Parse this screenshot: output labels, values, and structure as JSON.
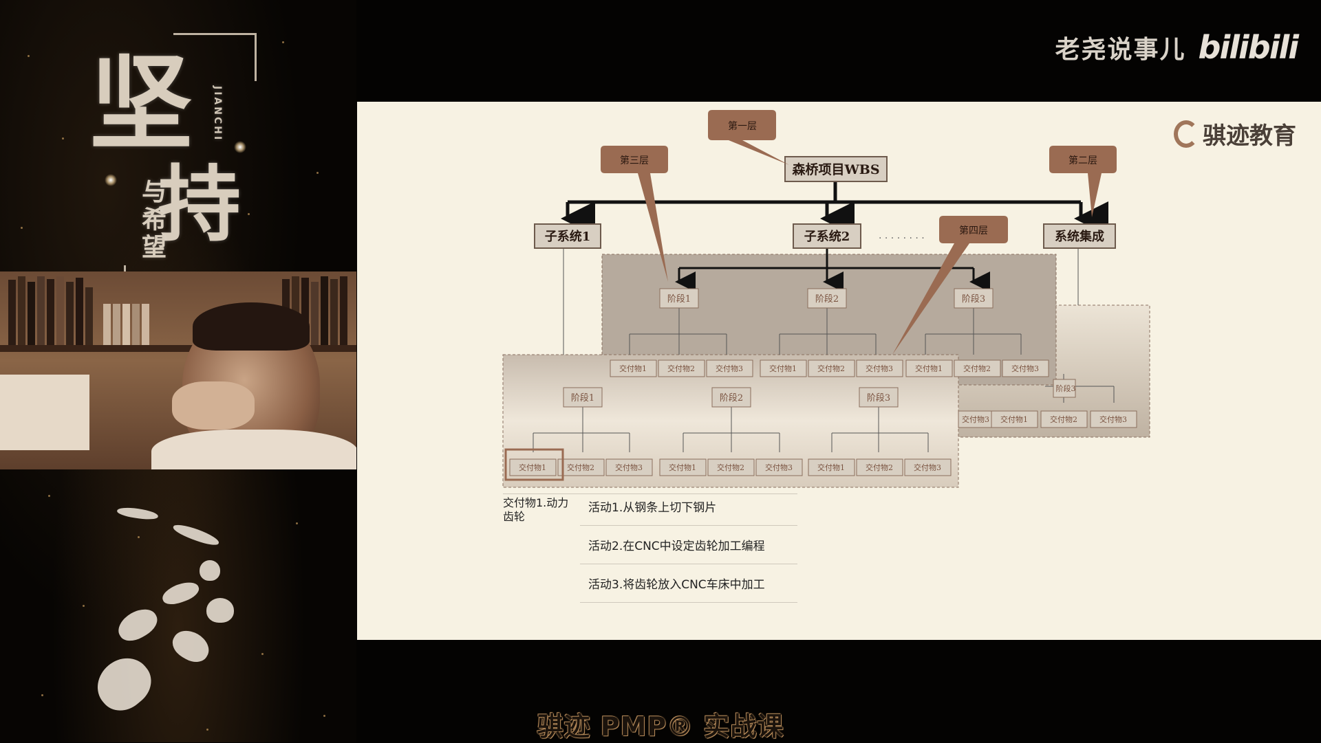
{
  "left_panel": {
    "title_char1": "坚",
    "title_char2": "持",
    "subtitle": "与希望",
    "pinyin": "JIANCHI"
  },
  "brand": {
    "channel_name": "老尧说事儿",
    "platform_logo": "bilibili"
  },
  "slide": {
    "logo_text": "骐迹教育",
    "wbs": {
      "root": "森桥项目WBS",
      "callouts": {
        "layer1": "第一层",
        "layer2": "第二层",
        "layer3": "第三层",
        "layer4": "第四层"
      },
      "subsystems": [
        "子系统1",
        "子系统2",
        "系统集成"
      ],
      "ellipsis": "· · · · · ·   · ·",
      "phases_back": [
        "阶段1",
        "阶段2",
        "阶段3"
      ],
      "phases_front": [
        "阶段1",
        "阶段2",
        "阶段3"
      ],
      "phase_right_partial": "阶段3",
      "deliverables": [
        "交付物1",
        "交付物2",
        "交付物3"
      ],
      "deliverable_partial": "交付物3"
    },
    "activities": {
      "deliverable": "交付物1.动力齿轮",
      "items": [
        "活动1.从钢条上切下钢片",
        "活动2.在CNC中设定齿轮加工编程",
        "活动3.将齿轮放入CNC车床中加工"
      ]
    },
    "colors": {
      "callout": "#9a6b52",
      "node_bg": "#d8cfc2",
      "node_text": "#7a5340",
      "panel_mid": "#b8aca0"
    }
  },
  "footer": {
    "course_title": "骐迹 PMP® 实战课"
  }
}
